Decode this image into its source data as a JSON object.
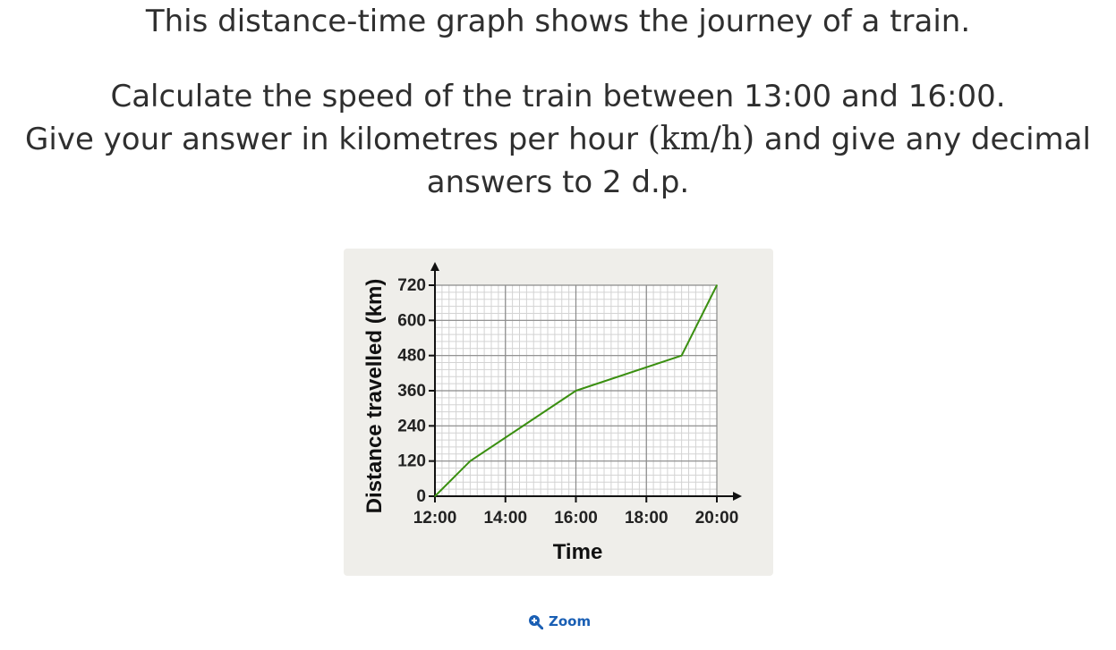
{
  "question": {
    "line1": "This distance-time graph shows the journey of a train.",
    "line2": "Calculate the speed of the train between 13:00 and 16:00.",
    "line3_prefix": "Give your answer in kilometres per hour ",
    "line3_math": "(km/h)",
    "line3_suffix": " and give any decimal",
    "line4": "answers to 2 d.p."
  },
  "zoom": {
    "label": "Zoom",
    "icon": "zoom-in-icon"
  },
  "chart_data": {
    "type": "line",
    "title": "",
    "xlabel": "Time",
    "ylabel": "Distance travelled (km)",
    "x_ticks": [
      "12:00",
      "14:00",
      "16:00",
      "18:00",
      "20:00"
    ],
    "y_ticks": [
      0,
      120,
      240,
      360,
      480,
      600,
      720
    ],
    "xlim": [
      12,
      20
    ],
    "ylim": [
      0,
      720
    ],
    "grid": true,
    "series": [
      {
        "color": "#3a8f10",
        "points": [
          {
            "x": "12:00",
            "y": 0
          },
          {
            "x": "13:00",
            "y": 120
          },
          {
            "x": "16:00",
            "y": 360
          },
          {
            "x": "19:00",
            "y": 480
          },
          {
            "x": "20:00",
            "y": 720
          }
        ]
      }
    ]
  }
}
